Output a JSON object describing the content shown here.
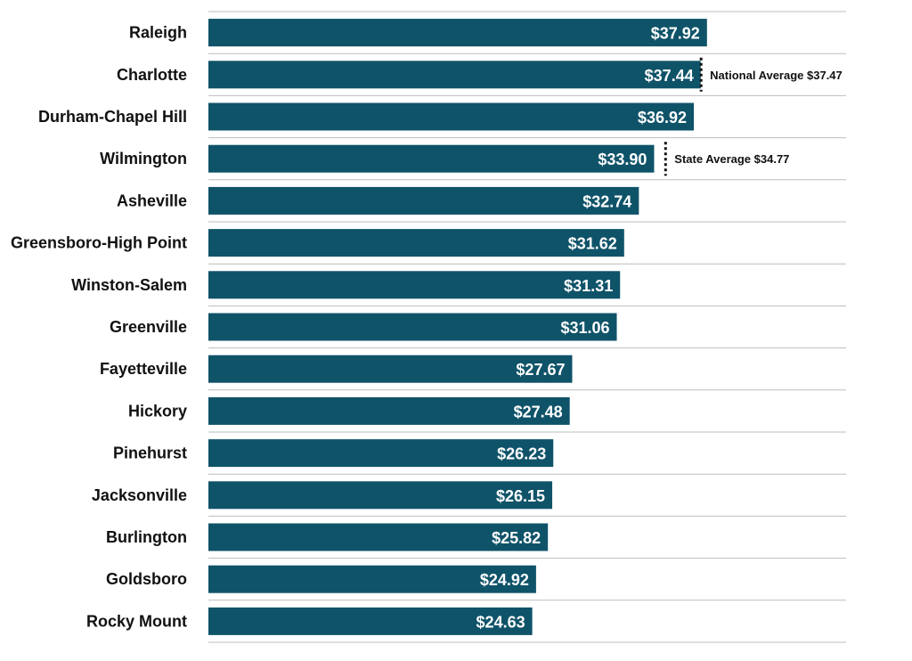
{
  "chart_data": {
    "type": "bar",
    "orientation": "horizontal",
    "title": "",
    "xlabel": "",
    "ylabel": "",
    "xlim": [
      0,
      48.5
    ],
    "grid": "horizontal-separators",
    "bar_color": "#0f5369",
    "categories": [
      "Raleigh",
      "Charlotte",
      "Durham-Chapel Hill",
      "Wilmington",
      "Asheville",
      "Greensboro-High Point",
      "Winston-Salem",
      "Greenville",
      "Fayetteville",
      "Hickory",
      "Pinehurst",
      "Jacksonville",
      "Burlington",
      "Goldsboro",
      "Rocky Mount"
    ],
    "values": [
      37.92,
      37.44,
      36.92,
      33.9,
      32.74,
      31.62,
      31.31,
      31.06,
      27.67,
      27.48,
      26.23,
      26.15,
      25.82,
      24.92,
      24.63
    ],
    "value_labels": [
      "$37.92",
      "$37.44",
      "$36.92",
      "$33.90",
      "$32.74",
      "$31.62",
      "$31.31",
      "$31.06",
      "$27.67",
      "$27.48",
      "$26.23",
      "$26.15",
      "$25.82",
      "$24.92",
      "$24.63"
    ],
    "reference_lines": [
      {
        "label": "National Average $37.47",
        "value": 37.47,
        "row": 1
      },
      {
        "label": "State Average $34.77",
        "value": 34.77,
        "row": 3
      }
    ]
  }
}
